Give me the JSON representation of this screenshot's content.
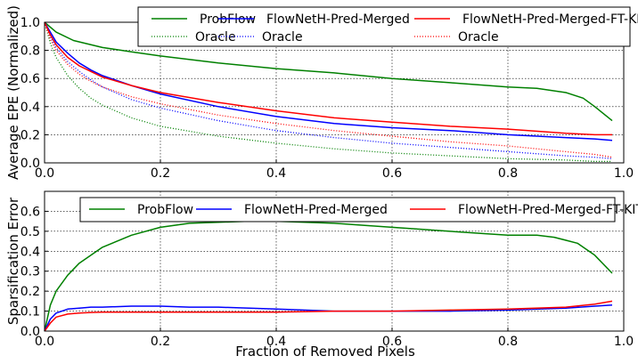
{
  "chart_data": [
    {
      "type": "line",
      "xlabel": "",
      "ylabel": "Average EPE (Normalized)",
      "xlim": [
        0.0,
        1.0
      ],
      "ylim": [
        0.0,
        1.0
      ],
      "xticks": [
        "0.0",
        "0.2",
        "0.4",
        "0.6",
        "0.8",
        "1.0"
      ],
      "yticks": [
        "0.0",
        "0.2",
        "0.4",
        "0.6",
        "0.8",
        "1.0"
      ],
      "grid": true,
      "legend_position": "top-right",
      "legend_columns": 3,
      "series": [
        {
          "name": "ProbFlow",
          "color": "#008000",
          "style": "solid",
          "x": [
            0.0,
            0.02,
            0.05,
            0.1,
            0.15,
            0.2,
            0.3,
            0.4,
            0.5,
            0.6,
            0.7,
            0.8,
            0.85,
            0.9,
            0.93,
            0.95,
            0.98
          ],
          "y": [
            1.0,
            0.93,
            0.87,
            0.82,
            0.79,
            0.76,
            0.71,
            0.67,
            0.64,
            0.6,
            0.57,
            0.54,
            0.53,
            0.5,
            0.46,
            0.4,
            0.3
          ]
        },
        {
          "name": "Oracle",
          "color": "#008000",
          "style": "dotted",
          "x": [
            0.0,
            0.01,
            0.02,
            0.04,
            0.06,
            0.08,
            0.1,
            0.15,
            0.2,
            0.3,
            0.4,
            0.5,
            0.6,
            0.7,
            0.8,
            0.9,
            0.95,
            0.98
          ],
          "y": [
            1.0,
            0.85,
            0.75,
            0.62,
            0.53,
            0.46,
            0.41,
            0.32,
            0.26,
            0.19,
            0.14,
            0.1,
            0.07,
            0.05,
            0.03,
            0.02,
            0.01,
            0.01
          ]
        },
        {
          "name": "FlowNetH-Pred-Merged",
          "color": "#0000ff",
          "style": "solid",
          "x": [
            0.0,
            0.01,
            0.02,
            0.04,
            0.06,
            0.08,
            0.1,
            0.15,
            0.2,
            0.3,
            0.4,
            0.5,
            0.6,
            0.7,
            0.8,
            0.9,
            0.95,
            0.98
          ],
          "y": [
            1.0,
            0.93,
            0.86,
            0.78,
            0.71,
            0.66,
            0.62,
            0.55,
            0.49,
            0.4,
            0.33,
            0.28,
            0.25,
            0.23,
            0.2,
            0.18,
            0.17,
            0.16
          ]
        },
        {
          "name": "Oracle",
          "color": "#0000ff",
          "style": "dotted",
          "x": [
            0.0,
            0.01,
            0.02,
            0.04,
            0.06,
            0.08,
            0.1,
            0.15,
            0.2,
            0.3,
            0.4,
            0.5,
            0.6,
            0.7,
            0.8,
            0.9,
            0.95,
            0.98
          ],
          "y": [
            1.0,
            0.9,
            0.82,
            0.72,
            0.65,
            0.59,
            0.54,
            0.45,
            0.39,
            0.3,
            0.23,
            0.18,
            0.14,
            0.11,
            0.08,
            0.05,
            0.04,
            0.03
          ]
        },
        {
          "name": "FlowNetH-Pred-Merged-FT-KITTI",
          "color": "#ff0000",
          "style": "solid",
          "x": [
            0.0,
            0.01,
            0.02,
            0.04,
            0.06,
            0.08,
            0.1,
            0.15,
            0.2,
            0.3,
            0.4,
            0.5,
            0.6,
            0.7,
            0.8,
            0.9,
            0.95,
            0.98
          ],
          "y": [
            1.0,
            0.91,
            0.84,
            0.75,
            0.69,
            0.65,
            0.61,
            0.55,
            0.5,
            0.43,
            0.37,
            0.32,
            0.29,
            0.26,
            0.24,
            0.21,
            0.2,
            0.2
          ]
        },
        {
          "name": "Oracle",
          "color": "#ff0000",
          "style": "dotted",
          "x": [
            0.0,
            0.01,
            0.02,
            0.04,
            0.06,
            0.08,
            0.1,
            0.15,
            0.2,
            0.3,
            0.4,
            0.5,
            0.6,
            0.7,
            0.8,
            0.9,
            0.95,
            0.98
          ],
          "y": [
            1.0,
            0.88,
            0.8,
            0.7,
            0.63,
            0.58,
            0.54,
            0.47,
            0.42,
            0.34,
            0.28,
            0.23,
            0.19,
            0.15,
            0.12,
            0.08,
            0.06,
            0.04
          ]
        }
      ],
      "legend_labels": [
        "ProbFlow",
        "Oracle",
        "FlowNetH-Pred-Merged",
        "Oracle",
        "FlowNetH-Pred-Merged-FT-KITTI",
        "Oracle"
      ]
    },
    {
      "type": "line",
      "xlabel": "Fraction of  Removed Pixels",
      "ylabel": "Sparsification Error",
      "xlim": [
        0.0,
        1.0
      ],
      "ylim": [
        0.0,
        0.7
      ],
      "xticks": [
        "0.0",
        "0.2",
        "0.4",
        "0.6",
        "0.8",
        "1.0"
      ],
      "yticks": [
        "0.0",
        "0.1",
        "0.2",
        "0.3",
        "0.4",
        "0.5",
        "0.6"
      ],
      "grid": true,
      "legend_position": "top-right",
      "legend_columns": 3,
      "series": [
        {
          "name": "ProbFlow",
          "color": "#008000",
          "style": "solid",
          "x": [
            0.0,
            0.01,
            0.02,
            0.04,
            0.06,
            0.08,
            0.1,
            0.15,
            0.2,
            0.25,
            0.3,
            0.35,
            0.4,
            0.45,
            0.5,
            0.55,
            0.6,
            0.65,
            0.7,
            0.75,
            0.8,
            0.85,
            0.88,
            0.92,
            0.95,
            0.98
          ],
          "y": [
            0.0,
            0.13,
            0.2,
            0.28,
            0.34,
            0.38,
            0.42,
            0.48,
            0.52,
            0.54,
            0.545,
            0.55,
            0.55,
            0.545,
            0.54,
            0.53,
            0.52,
            0.51,
            0.5,
            0.49,
            0.48,
            0.48,
            0.47,
            0.44,
            0.38,
            0.29
          ]
        },
        {
          "name": "FlowNetH-Pred-Merged",
          "color": "#0000ff",
          "style": "solid",
          "x": [
            0.0,
            0.01,
            0.02,
            0.04,
            0.06,
            0.08,
            0.1,
            0.15,
            0.2,
            0.25,
            0.3,
            0.4,
            0.5,
            0.6,
            0.7,
            0.8,
            0.9,
            0.95,
            0.98
          ],
          "y": [
            0.0,
            0.06,
            0.09,
            0.11,
            0.115,
            0.12,
            0.12,
            0.125,
            0.125,
            0.12,
            0.12,
            0.11,
            0.1,
            0.1,
            0.1,
            0.105,
            0.115,
            0.125,
            0.13
          ]
        },
        {
          "name": "FlowNetH-Pred-Merged-FT-KITTI",
          "color": "#ff0000",
          "style": "solid",
          "x": [
            0.0,
            0.01,
            0.02,
            0.04,
            0.06,
            0.08,
            0.1,
            0.15,
            0.2,
            0.3,
            0.4,
            0.5,
            0.6,
            0.7,
            0.8,
            0.9,
            0.95,
            0.98
          ],
          "y": [
            0.0,
            0.04,
            0.07,
            0.085,
            0.09,
            0.093,
            0.095,
            0.095,
            0.095,
            0.095,
            0.095,
            0.1,
            0.1,
            0.105,
            0.11,
            0.12,
            0.135,
            0.15
          ]
        }
      ],
      "legend_labels": [
        "ProbFlow",
        "FlowNetH-Pred-Merged",
        "FlowNetH-Pred-Merged-FT-KITTI"
      ]
    }
  ]
}
